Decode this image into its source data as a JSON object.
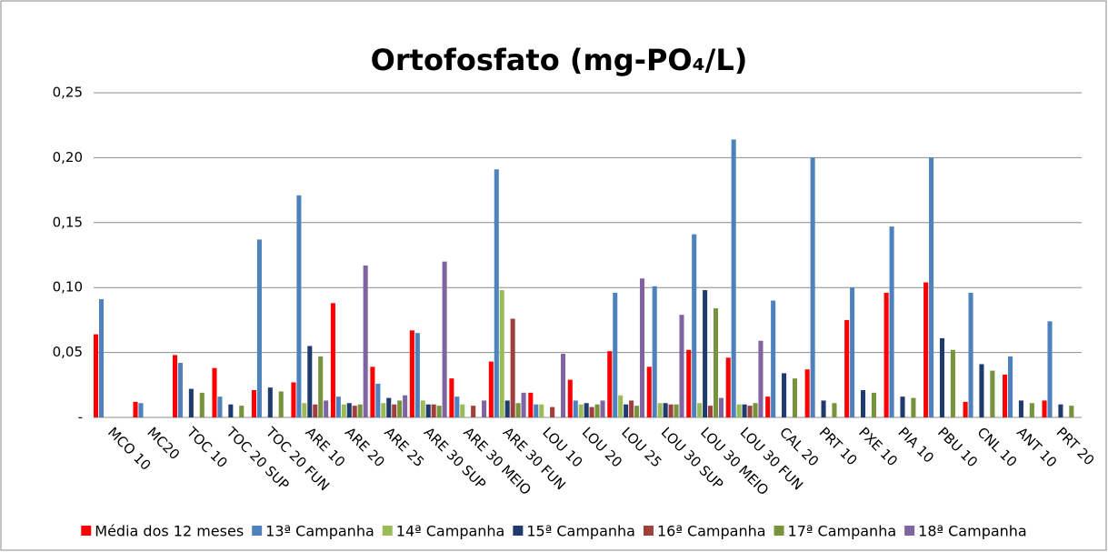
{
  "chart_data": {
    "type": "bar",
    "title": "Ortofosfato (mg-PO₄/L)",
    "categories": [
      "MCO 10",
      "MC20",
      "TOC 10",
      "TOC 20 SUP",
      "TOC 20 FUN",
      "ARE 10",
      "ARE 20",
      "ARE 25",
      "ARE 30 SUP",
      "ARE 30 MEIO",
      "ARE 30 FUN",
      "LOU 10",
      "LOU 20",
      "LOU 25",
      "LOU 30 SUP",
      "LOU 30 MEIO",
      "LOU 30 FUN",
      "CAL 20",
      "PRT 10",
      "PXE 10",
      "PIA 10",
      "PBU 10",
      "CNL 10",
      "ANT 10",
      "PRT 20"
    ],
    "series": [
      {
        "name": "Média dos 12 meses",
        "color": "#ff0000",
        "values": [
          0.064,
          0.012,
          0.048,
          0.038,
          0.021,
          0.027,
          0.088,
          0.039,
          0.067,
          0.03,
          0.043,
          0.019,
          0.029,
          0.051,
          0.039,
          0.052,
          0.046,
          0.016,
          0.037,
          0.075,
          0.096,
          0.104,
          0.012,
          0.033,
          0.013
        ]
      },
      {
        "name": "13ª Campanha",
        "color": "#4f81bd",
        "values": [
          0.091,
          0.011,
          0.042,
          0.016,
          0.137,
          0.171,
          0.016,
          0.026,
          0.065,
          0.016,
          0.191,
          0.01,
          0.013,
          0.096,
          0.101,
          0.141,
          0.214,
          0.09,
          0.2,
          0.1,
          0.147,
          0.2,
          0.096,
          0.047,
          0.074
        ]
      },
      {
        "name": "14ª Campanha",
        "color": "#9bbb59",
        "values": [
          null,
          null,
          null,
          null,
          null,
          0.011,
          0.01,
          0.011,
          0.013,
          0.01,
          0.098,
          0.01,
          0.01,
          0.017,
          0.011,
          0.011,
          0.01,
          null,
          null,
          null,
          null,
          null,
          null,
          null,
          null
        ]
      },
      {
        "name": "15ª Campanha",
        "color": "#1f3b6e",
        "values": [
          null,
          null,
          0.022,
          0.01,
          0.023,
          0.055,
          0.011,
          0.015,
          0.01,
          null,
          0.013,
          null,
          0.011,
          0.01,
          0.011,
          0.098,
          0.01,
          0.034,
          0.013,
          0.021,
          0.016,
          0.061,
          0.041,
          0.013,
          0.01
        ]
      },
      {
        "name": "16ª Campanha",
        "color": "#a0403d",
        "values": [
          null,
          null,
          null,
          null,
          null,
          0.01,
          0.009,
          0.01,
          0.01,
          0.009,
          0.076,
          0.008,
          0.008,
          0.013,
          0.01,
          0.009,
          0.009,
          null,
          null,
          null,
          null,
          null,
          null,
          null,
          null
        ]
      },
      {
        "name": "17ª Campanha",
        "color": "#77933c",
        "values": [
          null,
          null,
          0.019,
          0.009,
          0.02,
          0.047,
          0.01,
          0.013,
          0.009,
          null,
          0.011,
          null,
          0.01,
          0.009,
          0.01,
          0.084,
          0.011,
          0.03,
          0.011,
          0.019,
          0.015,
          0.052,
          0.036,
          0.011,
          0.009
        ]
      },
      {
        "name": "18ª Campanha",
        "color": "#8064a2",
        "values": [
          null,
          null,
          null,
          null,
          null,
          0.013,
          0.117,
          0.017,
          0.12,
          0.013,
          0.019,
          0.049,
          0.013,
          0.107,
          0.079,
          0.015,
          0.059,
          null,
          null,
          null,
          null,
          null,
          null,
          null,
          null
        ]
      }
    ],
    "ylim": [
      0,
      0.25
    ],
    "yticks": [
      {
        "value": 0,
        "label": "-"
      },
      {
        "value": 0.05,
        "label": "0,05"
      },
      {
        "value": 0.1,
        "label": "0,10"
      },
      {
        "value": 0.15,
        "label": "0,15"
      },
      {
        "value": 0.2,
        "label": "0,20"
      },
      {
        "value": 0.25,
        "label": "0,25"
      }
    ],
    "grid": true,
    "legend": "bottom"
  }
}
